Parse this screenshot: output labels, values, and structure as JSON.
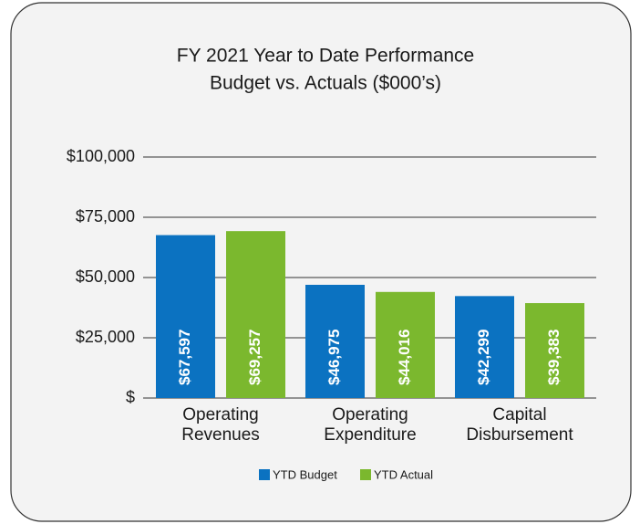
{
  "chart_data": {
    "type": "bar",
    "title": "FY 2021 Year to Date Performance",
    "subtitle": "Budget vs. Actuals ($000’s)",
    "categories": [
      "Operating Revenues",
      "Operating Expenditure",
      "Capital Disbursement"
    ],
    "series": [
      {
        "name": "YTD Budget",
        "color": "#0b72c1",
        "values": [
          67597,
          46975,
          42299
        ],
        "value_labels": [
          "$67,597",
          "$46,975",
          "$42,299"
        ]
      },
      {
        "name": "YTD Actual",
        "color": "#7bb82e",
        "values": [
          69257,
          44016,
          39383
        ],
        "value_labels": [
          "$69,257",
          "$44,016",
          "$39,383"
        ]
      }
    ],
    "ylim": [
      0,
      100000
    ],
    "yticks": [
      {
        "value": 0,
        "label": "$"
      },
      {
        "value": 25000,
        "label": "$25,000"
      },
      {
        "value": 50000,
        "label": "$50,000"
      },
      {
        "value": 75000,
        "label": "$75,000"
      },
      {
        "value": 100000,
        "label": "$100,000"
      }
    ],
    "grid": true,
    "legend": "bottom"
  }
}
